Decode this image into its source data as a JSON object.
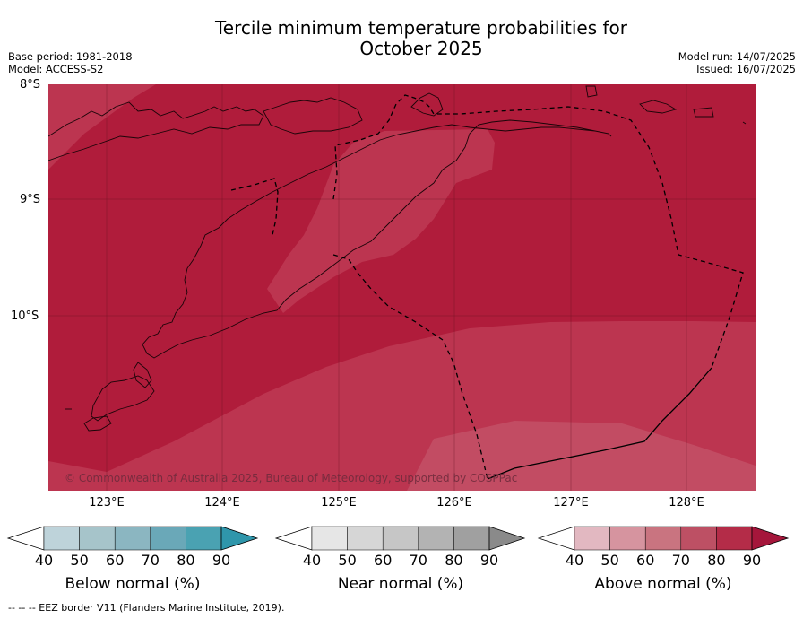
{
  "title_line1": "Tercile minimum temperature probabilities for",
  "title_line2": "October 2025",
  "meta_left": {
    "base_period": "Base period: 1981-2018",
    "model": "Model: ACCESS-S2"
  },
  "meta_right": {
    "model_run": "Model run: 14/07/2025",
    "issued": "Issued: 16/07/2025"
  },
  "lat_labels": [
    "8°S",
    "9°S",
    "10°S"
  ],
  "lon_labels": [
    "123°E",
    "124°E",
    "125°E",
    "126°E",
    "127°E",
    "128°E"
  ],
  "credit": "© Commonwealth of Australia 2025, Bureau of Meteorology, supported by COSPPac",
  "colorbars": [
    {
      "title": "Below normal (%)",
      "ticks": [
        "40",
        "50",
        "60",
        "70",
        "80",
        "90"
      ],
      "colors": [
        "#ffffff",
        "#bed3da",
        "#a6c4ca",
        "#8bb6c1",
        "#6aa8b8",
        "#4aa2b2",
        "#2f96ab"
      ]
    },
    {
      "title": "Near normal (%)",
      "ticks": [
        "40",
        "50",
        "60",
        "70",
        "80",
        "90"
      ],
      "colors": [
        "#ffffff",
        "#e6e6e6",
        "#d6d6d6",
        "#c6c6c6",
        "#b3b3b3",
        "#a0a0a0",
        "#8a8a8a"
      ]
    },
    {
      "title": "Above normal (%)",
      "ticks": [
        "40",
        "50",
        "60",
        "70",
        "80",
        "90"
      ],
      "colors": [
        "#ffffff",
        "#e2b8c1",
        "#d6949f",
        "#c97480",
        "#bd5064",
        "#b42c48",
        "#a5163b"
      ]
    }
  ],
  "map_colors": {
    "above_90": "#b01c3b",
    "above_80": "#bc3550",
    "above_70": "#c24c63"
  },
  "footer": "--  --  -- EEZ border V11 (Flanders Marine Institute, 2019)."
}
